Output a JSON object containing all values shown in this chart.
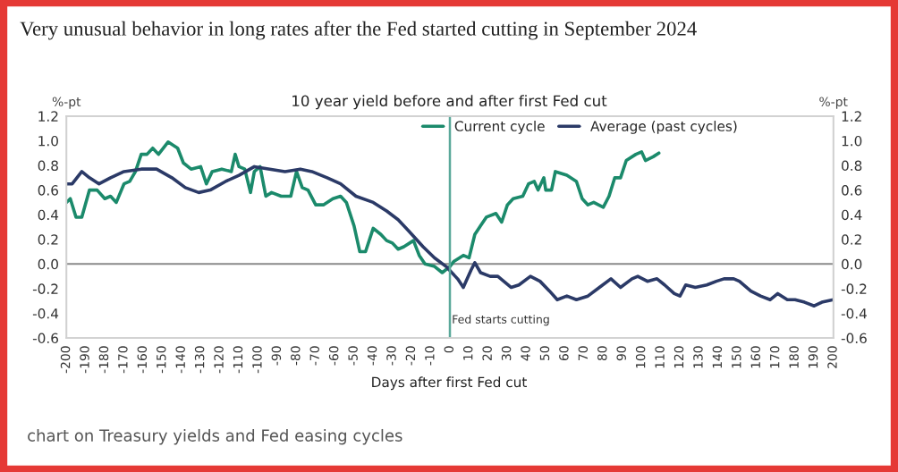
{
  "chart_data": {
    "type": "line",
    "title": "Very unusual behavior in long rates after the Fed started cutting in September 2024",
    "subtitle": "10 year yield before and after first Fed cut",
    "xlabel": "Days after first Fed cut",
    "ylabel": "%-pt",
    "y2label": "%-pt",
    "annotations": [
      "chart on Treasury yields and Fed easing cycles"
    ],
    "series": [
      {
        "name": "Current cycle",
        "color": "#1b8a6b",
        "x": [
          -200,
          -198,
          -195,
          -192,
          -188,
          -184,
          -180,
          -177,
          -174,
          -170,
          -167,
          -164,
          -161,
          -158,
          -155,
          -152,
          -147,
          -142,
          -139,
          -135,
          -130,
          -127,
          -124,
          -119,
          -114,
          -112,
          -110,
          -107,
          -104,
          -102,
          -99,
          -96,
          -93,
          -88,
          -83,
          -80,
          -77,
          -74,
          -70,
          -66,
          -61,
          -57,
          -54,
          -50,
          -47,
          -44,
          -40,
          -36,
          -33,
          -30,
          -27,
          -24,
          -19,
          -16,
          -13,
          -8,
          -4,
          0,
          2,
          7,
          10,
          13,
          16,
          19,
          24,
          27,
          30,
          33,
          38,
          41,
          44,
          46,
          49,
          50,
          53,
          55,
          61,
          66,
          69,
          72,
          75,
          80,
          83,
          86,
          89,
          92,
          97,
          100,
          102,
          106,
          109
        ],
        "values": [
          0.5,
          0.53,
          0.38,
          0.38,
          0.6,
          0.6,
          0.53,
          0.55,
          0.5,
          0.65,
          0.67,
          0.75,
          0.89,
          0.89,
          0.94,
          0.89,
          0.99,
          0.94,
          0.82,
          0.77,
          0.79,
          0.65,
          0.75,
          0.77,
          0.75,
          0.89,
          0.79,
          0.77,
          0.58,
          0.75,
          0.79,
          0.55,
          0.58,
          0.55,
          0.55,
          0.75,
          0.62,
          0.6,
          0.48,
          0.48,
          0.53,
          0.55,
          0.5,
          0.31,
          0.1,
          0.1,
          0.29,
          0.24,
          0.19,
          0.17,
          0.12,
          0.14,
          0.19,
          0.07,
          0.0,
          -0.02,
          -0.07,
          -0.02,
          0.02,
          0.07,
          0.05,
          0.24,
          0.31,
          0.38,
          0.41,
          0.34,
          0.48,
          0.53,
          0.55,
          0.65,
          0.67,
          0.6,
          0.7,
          0.6,
          0.6,
          0.75,
          0.72,
          0.67,
          0.53,
          0.48,
          0.5,
          0.46,
          0.55,
          0.7,
          0.7,
          0.84,
          0.89,
          0.91,
          0.84,
          0.87,
          0.9
        ]
      },
      {
        "name": "Average (past cycles)",
        "color": "#2b3a67",
        "x": [
          -200,
          -197,
          -192,
          -188,
          -183,
          -177,
          -170,
          -161,
          -153,
          -145,
          -138,
          -131,
          -125,
          -117,
          -110,
          -102,
          -94,
          -86,
          -78,
          -72,
          -64,
          -57,
          -49,
          -40,
          -33,
          -27,
          -21,
          -14,
          -8,
          -2,
          4,
          7,
          11,
          13,
          16,
          21,
          25,
          32,
          36,
          42,
          47,
          52,
          56,
          61,
          66,
          72,
          78,
          84,
          89,
          95,
          98,
          103,
          108,
          112,
          117,
          120,
          123,
          128,
          134,
          139,
          143,
          148,
          151,
          157,
          162,
          167,
          171,
          176,
          180,
          185,
          190,
          194,
          200
        ],
        "values": [
          0.65,
          0.65,
          0.75,
          0.7,
          0.65,
          0.7,
          0.75,
          0.77,
          0.77,
          0.7,
          0.62,
          0.58,
          0.6,
          0.67,
          0.72,
          0.79,
          0.77,
          0.75,
          0.77,
          0.75,
          0.7,
          0.65,
          0.55,
          0.5,
          0.43,
          0.36,
          0.26,
          0.14,
          0.05,
          -0.02,
          -0.12,
          -0.19,
          -0.05,
          0.01,
          -0.07,
          -0.1,
          -0.1,
          -0.19,
          -0.17,
          -0.1,
          -0.14,
          -0.22,
          -0.29,
          -0.26,
          -0.29,
          -0.26,
          -0.19,
          -0.12,
          -0.19,
          -0.12,
          -0.1,
          -0.14,
          -0.12,
          -0.17,
          -0.24,
          -0.26,
          -0.17,
          -0.19,
          -0.17,
          -0.14,
          -0.12,
          -0.12,
          -0.14,
          -0.22,
          -0.26,
          -0.29,
          -0.24,
          -0.29,
          -0.29,
          -0.31,
          -0.34,
          -0.31,
          -0.29
        ]
      }
    ],
    "xlim": [
      -200,
      200
    ],
    "xticks": [
      -200,
      -190,
      -180,
      -170,
      -160,
      -150,
      -140,
      -130,
      -120,
      -110,
      -100,
      -90,
      -80,
      -70,
      -60,
      -50,
      -40,
      -30,
      -20,
      -10,
      0,
      10,
      20,
      30,
      40,
      50,
      60,
      70,
      80,
      90,
      100,
      110,
      120,
      130,
      140,
      150,
      160,
      170,
      180,
      190,
      200
    ],
    "ylim": [
      -0.6,
      1.2
    ],
    "yticks": [
      {
        "value": -0.6,
        "label": "-0.6"
      },
      {
        "value": -0.4,
        "label": "-0.4"
      },
      {
        "value": -0.2,
        "label": "-0.2"
      },
      {
        "value": 0,
        "label": "0.0"
      },
      {
        "value": 0.2,
        "label": "0.2"
      },
      {
        "value": 0.4,
        "label": "0.4"
      },
      {
        "value": 0.6,
        "label": "0.6"
      },
      {
        "value": 0.8,
        "label": "0.8"
      },
      {
        "value": 1.0,
        "label": "1.0"
      },
      {
        "value": 1.2,
        "label": "1.2"
      }
    ],
    "y2lim": [
      -0.6,
      1.2
    ],
    "y2ticks": [
      {
        "value": -0.6,
        "label": "-0.6"
      },
      {
        "value": -0.4,
        "label": "-0.4"
      },
      {
        "value": -0.2,
        "label": "-0.2"
      },
      {
        "value": 0,
        "label": "0.0"
      },
      {
        "value": 0.2,
        "label": "0.2"
      },
      {
        "value": 0.4,
        "label": "0.4"
      },
      {
        "value": 0.6,
        "label": "0.6"
      },
      {
        "value": 0.8,
        "label": "0.8"
      },
      {
        "value": 1.0,
        "label": "1.0"
      },
      {
        "value": 1.2,
        "label": "1.2"
      }
    ],
    "ref_lines": [
      {
        "axis": "x",
        "value": 0,
        "label": "Fed starts cutting",
        "color": "#5aa89a"
      },
      {
        "axis": "y",
        "value": 0,
        "color": "#8a8a8a"
      }
    ],
    "legend": "top",
    "grid": false,
    "marker": "none",
    "line_style": "solid"
  }
}
